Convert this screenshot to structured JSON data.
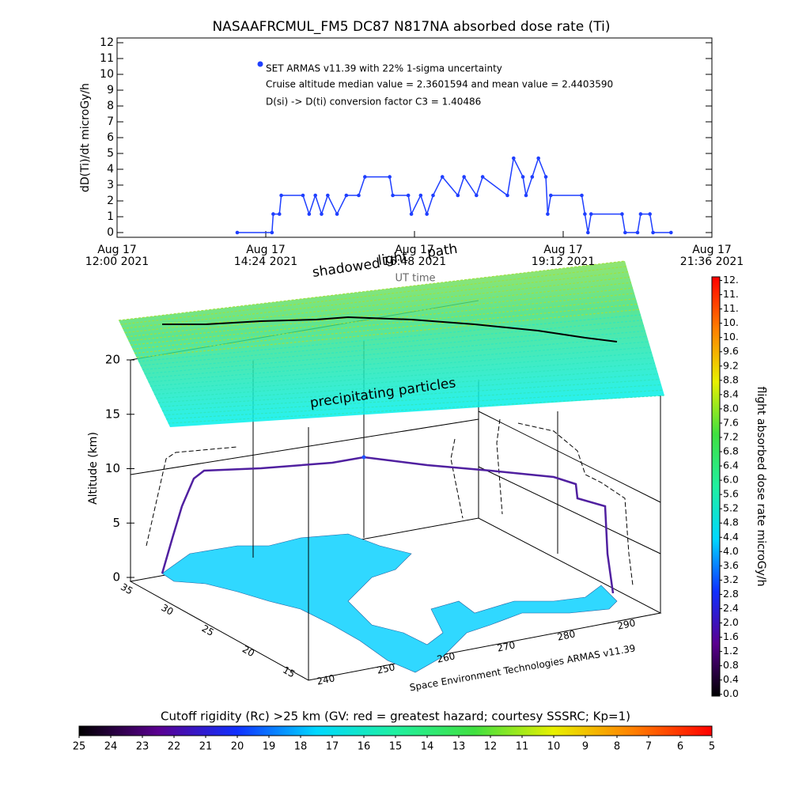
{
  "chart_data": [
    {
      "type": "line",
      "title": "NASAAFRCMUL_FM5 DC87 N817NA absorbed dose rate (Ti)",
      "ylabel": "dD(Ti)/dt microGy/h",
      "xlabel": "UT time",
      "xlim": [
        0,
        9.6
      ],
      "ylim": [
        -0.3,
        12.3
      ],
      "yticks": [
        0,
        1,
        2,
        3,
        4,
        5,
        6,
        7,
        8,
        9,
        10,
        11,
        12
      ],
      "xticks": [
        {
          "value": 0,
          "label": "Aug 17\n12:00 2021"
        },
        {
          "value": 2.4,
          "label": "Aug 17\n14:24 2021"
        },
        {
          "value": 4.8,
          "label": "Aug 17\n16:48 2021"
        },
        {
          "value": 7.2,
          "label": "Aug 17\n19:12 2021"
        },
        {
          "value": 9.6,
          "label": "Aug 17\n21:36 2021"
        }
      ],
      "notes": [
        "Cruise altitude median value = 2.3601594 and mean value = 2.4403590",
        "D(si) -> D(ti) conversion factor C3 = 1.40486"
      ],
      "series": [
        {
          "name": "SET ARMAS v11.39 with 22% 1-sigma uncertainty",
          "color": "#1f3fff",
          "x": [
            1.94,
            2.5,
            2.52,
            2.62,
            2.65,
            3.0,
            3.1,
            3.2,
            3.3,
            3.4,
            3.55,
            3.7,
            3.9,
            4.0,
            4.4,
            4.45,
            4.7,
            4.75,
            4.9,
            5.0,
            5.1,
            5.25,
            5.5,
            5.6,
            5.8,
            5.9,
            6.3,
            6.4,
            6.55,
            6.6,
            6.7,
            6.8,
            6.92,
            6.95,
            7.0,
            7.5,
            7.55,
            7.6,
            7.65,
            8.15,
            8.2,
            8.4,
            8.45,
            8.6,
            8.65,
            8.94
          ],
          "values": [
            0,
            0,
            1.17,
            1.17,
            2.35,
            2.35,
            1.17,
            2.35,
            1.17,
            2.35,
            1.17,
            2.35,
            2.35,
            3.52,
            3.52,
            2.35,
            2.35,
            1.17,
            2.35,
            1.17,
            2.35,
            3.52,
            2.35,
            3.52,
            2.35,
            3.52,
            2.35,
            4.7,
            3.52,
            2.35,
            3.52,
            4.7,
            3.52,
            1.17,
            2.35,
            2.35,
            1.17,
            0,
            1.17,
            1.17,
            0,
            0,
            1.17,
            1.17,
            0,
            0
          ]
        }
      ]
    },
    {
      "type": "3d",
      "zlabel": "Altitude (km)",
      "zlim": [
        0,
        20
      ],
      "zticks": [
        0,
        5,
        10,
        15,
        20
      ],
      "yticks": [
        35,
        30,
        25,
        20,
        15
      ],
      "xticks": [
        240,
        250,
        260,
        270,
        280,
        290
      ],
      "annotations": [
        "shadowed",
        "light",
        "path",
        "precipitating particles"
      ],
      "credit": "Space Environment Technologies ARMAS v11.39"
    },
    {
      "type": "colorbar",
      "orientation": "vertical",
      "label": "flight absorbed dose rate microGy/h",
      "clim": [
        -0.05,
        11.7
      ],
      "colors": [
        "#000000",
        "#5a0090",
        "#1030ff",
        "#00d8ff",
        "#20f0a0",
        "#40e040",
        "#e8f000",
        "#ff8000",
        "#ff0000"
      ],
      "ticks": [
        {
          "value": 0,
          "label": "0.0"
        },
        0.4,
        0.8,
        1.2,
        1.6,
        {
          "value": 2,
          "label": "2.0"
        },
        2.4,
        2.8,
        3.2,
        3.6,
        {
          "value": 4,
          "label": "4.0"
        },
        4.4,
        4.8,
        5.2,
        5.6,
        {
          "value": 6,
          "label": "6.0"
        },
        6.4,
        6.8,
        7.2,
        7.6,
        {
          "value": 8,
          "label": "8.0"
        },
        8.4,
        8.8,
        9.2,
        9.6,
        {
          "value": 10,
          "label": "10."
        },
        {
          "value": 10.4,
          "label": "10."
        },
        {
          "value": 10.8,
          "label": "11."
        },
        {
          "value": 11.2,
          "label": "11."
        },
        {
          "value": 11.6,
          "label": "12."
        }
      ]
    },
    {
      "type": "colorbar",
      "orientation": "horizontal",
      "label": "Cutoff rigidity (Rc) >25 km (GV: red = greatest hazard; courtesy SSSRC; Kp=1)",
      "clim": [
        25,
        5
      ],
      "colors": [
        "#000000",
        "#5a0090",
        "#1030ff",
        "#00d8ff",
        "#20f0a0",
        "#40e040",
        "#e8f000",
        "#ff8000",
        "#ff0000"
      ],
      "ticks": [
        25,
        24,
        23,
        22,
        21,
        20,
        19,
        18,
        17,
        16,
        15,
        14,
        13,
        12,
        11,
        10,
        9,
        8,
        7,
        6,
        5
      ]
    }
  ]
}
